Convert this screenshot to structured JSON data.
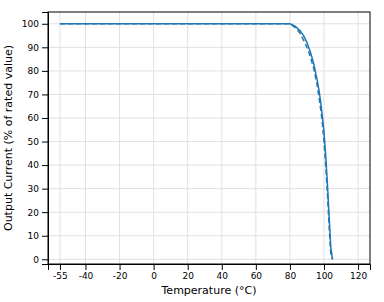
{
  "chart_data": {
    "type": "line",
    "xlabel": "Temperature (°C)",
    "ylabel": "Output Current (% of rated value)",
    "xlim": [
      -62,
      127
    ],
    "ylim": [
      -2,
      105
    ],
    "xticks": [
      -55,
      -40,
      -20,
      0,
      20,
      40,
      60,
      80,
      100,
      120
    ],
    "yticks": [
      0,
      10,
      20,
      30,
      40,
      50,
      60,
      70,
      80,
      90,
      100
    ],
    "grid": true,
    "x": [
      -55,
      0,
      60,
      75,
      80,
      83,
      86,
      88,
      90,
      92,
      94,
      96,
      97,
      98,
      99,
      100,
      101,
      102,
      103,
      104,
      105
    ],
    "series": [
      {
        "values": [
          100,
          100,
          100,
          100,
          100,
          99,
          97,
          95,
          92,
          88,
          83,
          76,
          72,
          67,
          61,
          54,
          44,
          32,
          18,
          5,
          0
        ],
        "line_style": "solid"
      },
      {
        "values": [
          100,
          100,
          100,
          100,
          100,
          98.5,
          96,
          93,
          90,
          86,
          81,
          74,
          69,
          64,
          58,
          50,
          40,
          28,
          14,
          2,
          0
        ],
        "line_style": "dashed"
      }
    ]
  }
}
